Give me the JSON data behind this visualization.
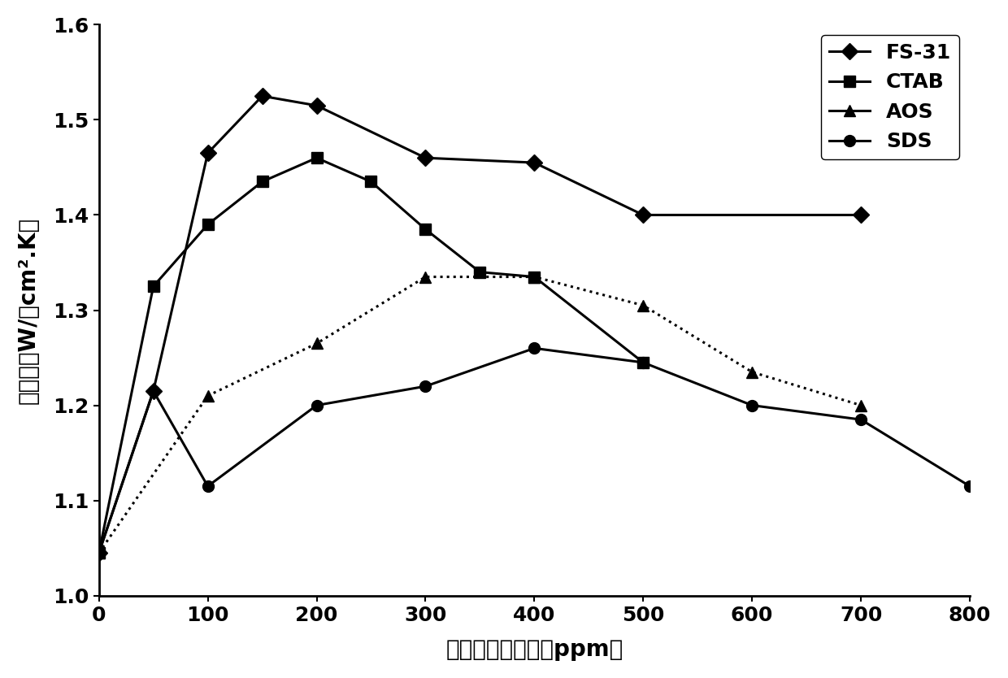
{
  "title": "",
  "xlabel": "表面活性剂浓度（ppm）",
  "ylabel": "换热系数W/（cm².K）",
  "xlim": [
    0,
    800
  ],
  "ylim": [
    1.0,
    1.6
  ],
  "xticks": [
    0,
    100,
    200,
    300,
    400,
    500,
    600,
    700,
    800
  ],
  "yticks": [
    1.0,
    1.1,
    1.2,
    1.3,
    1.4,
    1.5,
    1.6
  ],
  "series": [
    {
      "label": "FS-31",
      "x": [
        0,
        50,
        100,
        150,
        200,
        300,
        400,
        500,
        700
      ],
      "y": [
        1.045,
        1.215,
        1.465,
        1.525,
        1.515,
        1.46,
        1.455,
        1.4,
        1.4
      ],
      "marker": "D",
      "linestyle": "-",
      "color": "#000000",
      "markersize": 10
    },
    {
      "label": "CTAB",
      "x": [
        0,
        50,
        100,
        150,
        200,
        250,
        300,
        350,
        400,
        500
      ],
      "y": [
        1.045,
        1.325,
        1.39,
        1.435,
        1.46,
        1.435,
        1.385,
        1.34,
        1.335,
        1.245
      ],
      "marker": "s",
      "linestyle": "-",
      "color": "#000000",
      "markersize": 10
    },
    {
      "label": "AOS",
      "x": [
        0,
        100,
        200,
        300,
        400,
        500,
        600,
        700
      ],
      "y": [
        1.045,
        1.21,
        1.265,
        1.335,
        1.335,
        1.305,
        1.235,
        1.2
      ],
      "marker": "^",
      "linestyle": ":",
      "color": "#000000",
      "markersize": 10
    },
    {
      "label": "SDS",
      "x": [
        0,
        50,
        100,
        200,
        300,
        400,
        500,
        600,
        700,
        800
      ],
      "y": [
        1.045,
        1.215,
        1.115,
        1.2,
        1.22,
        1.26,
        1.245,
        1.2,
        1.185,
        1.115
      ],
      "marker": "o",
      "linestyle": "-",
      "color": "#000000",
      "markersize": 10
    }
  ],
  "legend_loc": "upper right",
  "background_color": "#ffffff",
  "linewidth": 2.2
}
